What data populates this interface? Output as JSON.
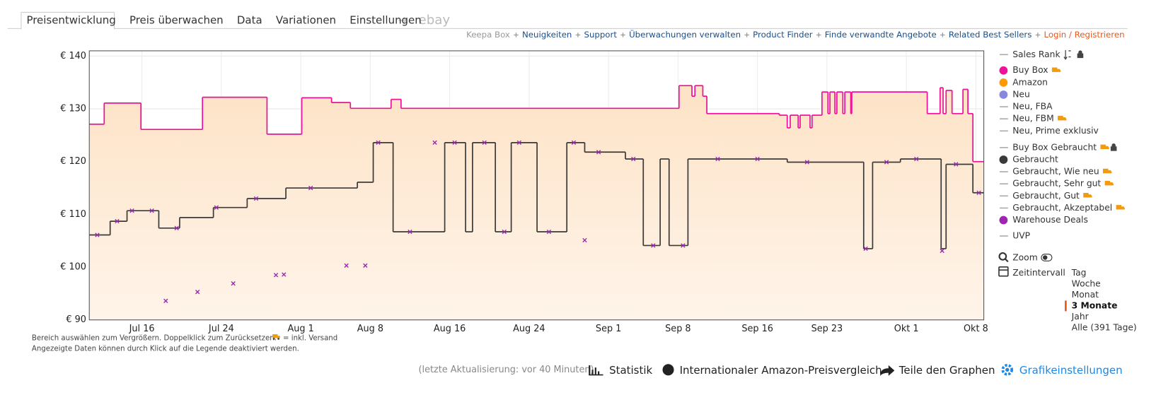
{
  "tabs": [
    "Preisentwicklung",
    "Preis überwachen",
    "Data",
    "Variationen",
    "Einstellungen"
  ],
  "tab_external": "ebay",
  "links": [
    "Keepa Box",
    "Neuigkeiten",
    "Support",
    "Überwachungen verwalten",
    "Product Finder",
    "Finde verwandte Angebote",
    "Related Best Sellers",
    "Login / Registrieren"
  ],
  "legend": [
    {
      "label": "Sales Rank"
    },
    {
      "label": "Amazon",
      "color": "#ff9900"
    },
    {
      "label": "Neu",
      "color": "#8888dd"
    },
    {
      "label": "Neu, FBA"
    },
    {
      "label": "Neu, FBM"
    },
    {
      "label": "Neu, Prime exklusiv"
    },
    {
      "label": "Buy Box Gebraucht"
    },
    {
      "label": "Gebraucht, Wie neu"
    },
    {
      "label": "Gebraucht, Sehr gut"
    },
    {
      "label": "Gebraucht, Gut"
    },
    {
      "label": "Gebraucht, Akzeptabel"
    },
    {
      "label": "UVP"
    }
  ],
  "zoom": "Zoom",
  "interval": {
    "label": "Zeitintervall",
    "options": [
      "Tag",
      "Woche",
      "Monat",
      "3 Monate",
      "Jahr",
      "Alle (391 Tage)"
    ],
    "selected": 3
  },
  "notes": [
    "Bereich auswählen zum Vergrößern. Doppelklick zum Zurücksetzen.",
    "= inkl. Versand",
    "Angezeigte Daten können durch Klick auf die Legende deaktiviert werden."
  ],
  "footer": {
    "updated": "(letzte Aktualisierung: vor 40 Minuten)",
    "actions": [
      "Statistik",
      "Internationaler Amazon-Preisvergleich",
      "Teile den Graphen",
      "Grafikeinstellungen"
    ]
  },
  "chart_data": {
    "type": "step",
    "xlim": [
      10.7,
      100.8
    ],
    "xticks": [
      {
        "value": 16,
        "label": "Jul 16"
      },
      {
        "value": 24,
        "label": "Jul 24"
      },
      {
        "value": 32,
        "label": "Aug 1"
      },
      {
        "value": 39,
        "label": "Aug 8"
      },
      {
        "value": 47,
        "label": "Aug 16"
      },
      {
        "value": 55,
        "label": "Aug 24"
      },
      {
        "value": 63,
        "label": "Sep 1"
      },
      {
        "value": 70,
        "label": "Sep 8"
      },
      {
        "value": 78,
        "label": "Sep 16"
      },
      {
        "value": 85,
        "label": "Sep 23"
      },
      {
        "value": 93,
        "label": "Okt 1"
      },
      {
        "value": 100,
        "label": "Okt 8"
      }
    ],
    "ylim": [
      90,
      141
    ],
    "yticks": [
      {
        "value": 90,
        "label": "€ 90"
      },
      {
        "value": 100,
        "label": "€ 100"
      },
      {
        "value": 110,
        "label": "€ 110"
      },
      {
        "value": 120,
        "label": "€ 120"
      },
      {
        "value": 130,
        "label": "€ 130"
      },
      {
        "value": 140,
        "label": "€ 140"
      }
    ],
    "grid": true,
    "series": [
      {
        "name": "Buy Box",
        "color": "#ee1199",
        "area": "#fde3c6",
        "x": [
          10.7,
          12.2,
          15.9,
          22.1,
          28.6,
          32.1,
          35.1,
          37.0,
          41.1,
          42.1,
          70.1,
          71.4,
          71.7,
          72.5,
          72.9,
          80.2,
          81.0,
          81.3,
          82.1,
          82.3,
          83.3,
          83.5,
          84.5,
          85.1,
          85.3,
          85.8,
          86.0,
          86.6,
          86.8,
          87.4,
          87.5,
          95.1,
          96.4,
          96.7,
          97.0,
          97.6,
          98.7,
          99.2,
          99.7,
          100.8
        ],
        "values": [
          127.1,
          131.1,
          126.1,
          132.2,
          125.2,
          132.1,
          131.2,
          130.1,
          131.8,
          130.1,
          134.4,
          132.4,
          134.4,
          132.4,
          129.1,
          128.8,
          126.4,
          128.8,
          126.4,
          128.8,
          126.4,
          128.8,
          133.2,
          129.1,
          133.2,
          129.1,
          133.2,
          129.1,
          133.2,
          129.1,
          133.2,
          129.1,
          134.0,
          129.1,
          133.5,
          129.1,
          133.7,
          129.1,
          120.0,
          120.0
        ]
      },
      {
        "name": "Gebraucht",
        "color": "#3a3a3a",
        "x": [
          10.7,
          12.8,
          14.5,
          17.7,
          19.8,
          23.2,
          26.6,
          30.5,
          37.7,
          39.3,
          41.3,
          46.5,
          48.6,
          49.3,
          51.6,
          53.2,
          55.8,
          58.8,
          60.6,
          64.7,
          66.5,
          68.2,
          69.1,
          71.0,
          81.0,
          88.7,
          89.6,
          92.4,
          96.5,
          97.0,
          99.7,
          100.8
        ],
        "values": [
          106.1,
          108.7,
          110.7,
          107.4,
          109.4,
          111.3,
          113.0,
          115.0,
          116.1,
          123.6,
          106.7,
          123.6,
          106.7,
          123.6,
          106.7,
          123.6,
          106.7,
          123.6,
          121.8,
          120.5,
          104.1,
          120.5,
          104.1,
          120.5,
          119.9,
          103.5,
          119.9,
          120.5,
          103.5,
          119.5,
          114.1,
          114.1
        ]
      },
      {
        "name": "Warehouse Deals",
        "color": "#9c27b0",
        "marker": "x",
        "x": [
          11.5,
          13.5,
          15.0,
          17.0,
          18.4,
          19.5,
          21.6,
          23.5,
          25.2,
          27.5,
          29.5,
          30.3,
          33.0,
          36.6,
          38.5,
          39.8,
          43.0,
          45.5,
          47.5,
          50.5,
          52.5,
          54.0,
          57.0,
          59.5,
          60.6,
          62.0,
          65.5,
          67.5,
          70.5,
          74.0,
          78.0,
          83.0,
          88.9,
          91.0,
          94.0,
          96.6,
          98.0,
          100.3
        ],
        "values": [
          106.1,
          108.7,
          110.7,
          110.7,
          93.6,
          107.4,
          95.3,
          111.3,
          96.9,
          113.0,
          98.5,
          98.6,
          115.0,
          100.3,
          100.3,
          123.6,
          106.7,
          123.6,
          123.6,
          123.6,
          106.7,
          123.6,
          106.7,
          123.6,
          105.1,
          121.8,
          120.5,
          104.1,
          104.1,
          120.5,
          120.5,
          119.9,
          103.5,
          119.9,
          120.5,
          103.1,
          119.5,
          114.1
        ]
      }
    ]
  }
}
